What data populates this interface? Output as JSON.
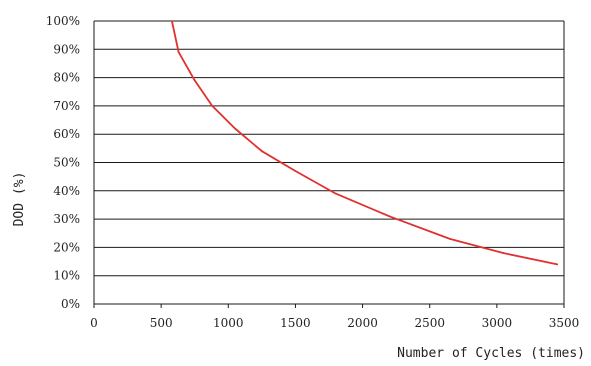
{
  "chart_data": {
    "type": "line",
    "title": "",
    "xlabel": "Number of Cycles (times)",
    "ylabel": "DOD (%)",
    "xlim": [
      0,
      3500
    ],
    "ylim": [
      0,
      100
    ],
    "x_ticks": [
      "0",
      "500",
      "1000",
      "1500",
      "2000",
      "2500",
      "3000",
      "3500"
    ],
    "y_ticks": [
      "0%",
      "10%",
      "20%",
      "30%",
      "40%",
      "50%",
      "60%",
      "70%",
      "80%",
      "90%",
      "100%"
    ],
    "x_tick_values": [
      0,
      500,
      1000,
      1500,
      2000,
      2500,
      3000,
      3500
    ],
    "y_tick_values": [
      0,
      10,
      20,
      30,
      40,
      50,
      60,
      70,
      80,
      90,
      100
    ],
    "grid": "horizontal",
    "series": [
      {
        "color": "#e03030",
        "x": [
          580,
          630,
          750,
          880,
          1050,
          1250,
          1500,
          1800,
          2200,
          2650,
          3050,
          3450
        ],
        "y": [
          100,
          89,
          79,
          70,
          62,
          54,
          47,
          39,
          31,
          23,
          18,
          14
        ]
      }
    ]
  }
}
